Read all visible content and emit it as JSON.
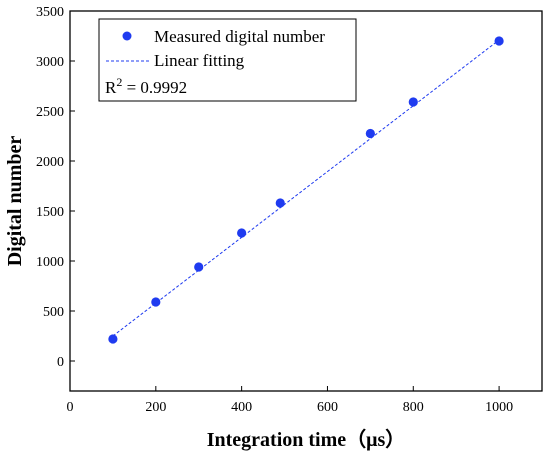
{
  "chart_data": {
    "type": "scatter",
    "xlabel": "Integration time（μs）",
    "ylabel": "Digital number",
    "xlim": [
      0,
      1100
    ],
    "ylim": [
      -300,
      3500
    ],
    "xticks": [
      0,
      200,
      400,
      600,
      800,
      1000
    ],
    "yticks": [
      0,
      500,
      1000,
      1500,
      2000,
      2500,
      3000,
      3500
    ],
    "grid": false,
    "legend_position": "top-left",
    "series": [
      {
        "name": "Measured digital number",
        "kind": "points",
        "color": "#1f3bf0",
        "x": [
          100,
          200,
          300,
          400,
          490,
          700,
          800,
          1000
        ],
        "y": [
          220,
          590,
          940,
          1280,
          1580,
          2275,
          2590,
          3200
        ]
      },
      {
        "name": "Linear fitting",
        "kind": "dashed-line",
        "color": "#1f3bf0",
        "x": [
          100,
          1000
        ],
        "y": [
          250,
          3210
        ]
      }
    ],
    "annotation": {
      "r2_prefix": "R",
      "r2_superscript": "2",
      "r2_value": " = 0.9992"
    }
  }
}
